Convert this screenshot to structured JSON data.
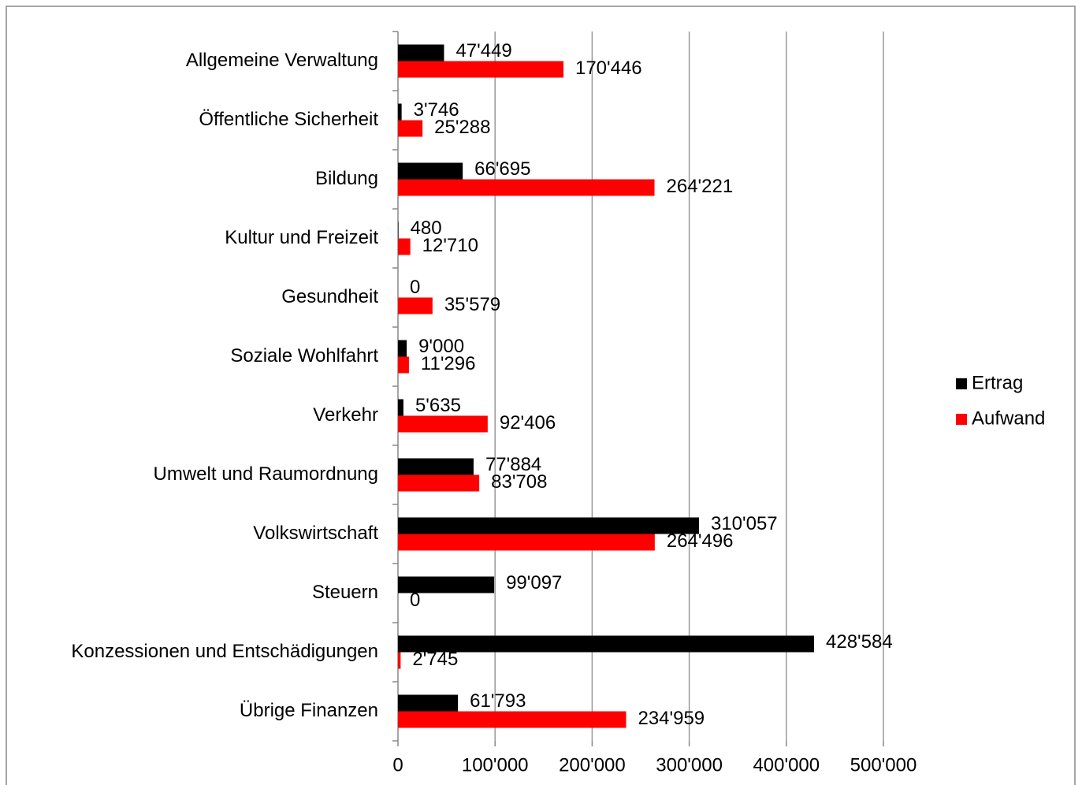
{
  "chart_data": {
    "type": "bar",
    "orientation": "horizontal",
    "categories": [
      "Allgemeine Verwaltung",
      "Öffentliche Sicherheit",
      "Bildung",
      "Kultur und Freizeit",
      "Gesundheit",
      "Soziale Wohlfahrt",
      "Verkehr",
      "Umwelt und Raumordnung",
      "Volkswirtschaft",
      "Steuern",
      "Konzessionen und Entschädigungen",
      "Übrige Finanzen"
    ],
    "series": [
      {
        "name": "Ertrag",
        "color": "#000000",
        "values": [
          47449,
          3746,
          66695,
          480,
          0,
          9000,
          5635,
          77884,
          310057,
          99097,
          428584,
          61793
        ],
        "value_labels": [
          "47'449",
          "3'746",
          "66'695",
          "480",
          "0",
          "9'000",
          "5'635",
          "77'884",
          "310'057",
          "99'097",
          "428'584",
          "61'793"
        ]
      },
      {
        "name": "Aufwand",
        "color": "#ff0000",
        "values": [
          170446,
          25288,
          264221,
          12710,
          35579,
          11296,
          92406,
          83708,
          264496,
          0,
          2745,
          234959
        ],
        "value_labels": [
          "170'446",
          "25'288",
          "264'221",
          "12'710",
          "35'579",
          "11'296",
          "92'406",
          "83'708",
          "264'496",
          "0",
          "2'745",
          "234'959"
        ]
      }
    ],
    "xlim": [
      0,
      500000
    ],
    "xticks": [
      0,
      {
        "value": 100000,
        "label": "100'000"
      },
      {
        "value": 200000,
        "label": "200'000"
      },
      {
        "value": 300000,
        "label": "300'000"
      },
      {
        "value": 400000,
        "label": "400'000"
      },
      {
        "value": 500000,
        "label": "500'000"
      }
    ],
    "grid": true,
    "legend": "right"
  }
}
